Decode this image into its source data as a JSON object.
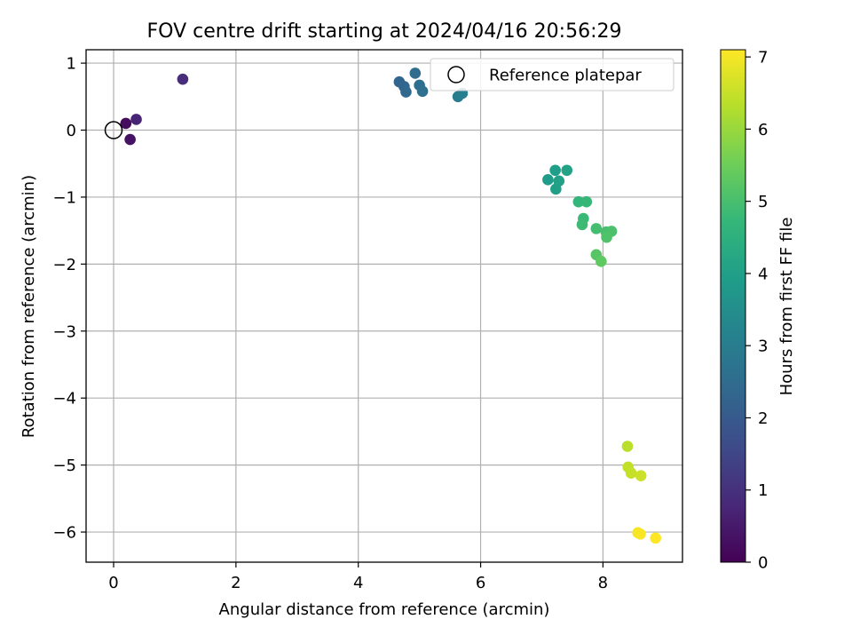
{
  "chart_data": {
    "type": "scatter",
    "title": "FOV centre drift starting at 2024/04/16 20:56:29",
    "xlabel": "Angular distance from reference (arcmin)",
    "ylabel": "Rotation from reference (arcmin)",
    "xlim": [
      -0.45,
      9.3
    ],
    "ylim": [
      -6.45,
      1.2
    ],
    "xticks": [
      0,
      2,
      4,
      6,
      8
    ],
    "xtick_labels": [
      "0",
      "2",
      "4",
      "6",
      "8"
    ],
    "yticks": [
      1,
      0,
      -1,
      -2,
      -3,
      -4,
      -5,
      -6
    ],
    "ytick_labels": [
      "1",
      "0",
      "−1",
      "−2",
      "−3",
      "−4",
      "−5",
      "−6"
    ],
    "grid": true,
    "colormap": "viridis",
    "colorbar": {
      "label": "Hours from first FF file",
      "range": [
        0,
        7.1
      ],
      "ticks": [
        0,
        1,
        2,
        3,
        4,
        5,
        6,
        7
      ],
      "tick_labels": [
        "0",
        "1",
        "2",
        "3",
        "4",
        "5",
        "6",
        "7"
      ]
    },
    "legend": {
      "placement": "top-right",
      "entries": [
        {
          "label": "Reference platepar",
          "marker": "open-circle"
        }
      ]
    },
    "reference_point": {
      "x": 0,
      "y": 0
    },
    "points": [
      {
        "x": 0.2,
        "y": 0.1,
        "hours": 0.2
      },
      {
        "x": 0.27,
        "y": -0.14,
        "hours": 0.35
      },
      {
        "x": 0.37,
        "y": 0.16,
        "hours": 0.7
      },
      {
        "x": 1.13,
        "y": 0.76,
        "hours": 0.9
      },
      {
        "x": 4.67,
        "y": 0.72,
        "hours": 2.3
      },
      {
        "x": 4.75,
        "y": 0.65,
        "hours": 2.35
      },
      {
        "x": 4.78,
        "y": 0.57,
        "hours": 2.4
      },
      {
        "x": 4.93,
        "y": 0.85,
        "hours": 2.5
      },
      {
        "x": 5.0,
        "y": 0.67,
        "hours": 2.55
      },
      {
        "x": 5.05,
        "y": 0.58,
        "hours": 2.6
      },
      {
        "x": 5.63,
        "y": 0.5,
        "hours": 2.95
      },
      {
        "x": 5.7,
        "y": 0.55,
        "hours": 3.05
      },
      {
        "x": 7.1,
        "y": -0.74,
        "hours": 3.9
      },
      {
        "x": 7.22,
        "y": -0.6,
        "hours": 3.95
      },
      {
        "x": 7.23,
        "y": -0.88,
        "hours": 4.0
      },
      {
        "x": 7.28,
        "y": -0.76,
        "hours": 4.05
      },
      {
        "x": 7.41,
        "y": -0.6,
        "hours": 4.1
      },
      {
        "x": 7.6,
        "y": -1.07,
        "hours": 4.7
      },
      {
        "x": 7.73,
        "y": -1.07,
        "hours": 4.75
      },
      {
        "x": 7.68,
        "y": -1.32,
        "hours": 4.8
      },
      {
        "x": 7.66,
        "y": -1.41,
        "hours": 4.85
      },
      {
        "x": 7.89,
        "y": -1.47,
        "hours": 4.95
      },
      {
        "x": 8.05,
        "y": -1.52,
        "hours": 5.0
      },
      {
        "x": 8.14,
        "y": -1.51,
        "hours": 5.05
      },
      {
        "x": 8.06,
        "y": -1.6,
        "hours": 5.1
      },
      {
        "x": 7.89,
        "y": -1.86,
        "hours": 5.2
      },
      {
        "x": 7.97,
        "y": -1.96,
        "hours": 5.3
      },
      {
        "x": 8.4,
        "y": -4.72,
        "hours": 6.35
      },
      {
        "x": 8.41,
        "y": -5.03,
        "hours": 6.45
      },
      {
        "x": 8.46,
        "y": -5.12,
        "hours": 6.5
      },
      {
        "x": 8.62,
        "y": -5.16,
        "hours": 6.55
      },
      {
        "x": 8.57,
        "y": -6.01,
        "hours": 7.0
      },
      {
        "x": 8.61,
        "y": -6.03,
        "hours": 7.05
      },
      {
        "x": 8.86,
        "y": -6.09,
        "hours": 7.1
      }
    ]
  }
}
